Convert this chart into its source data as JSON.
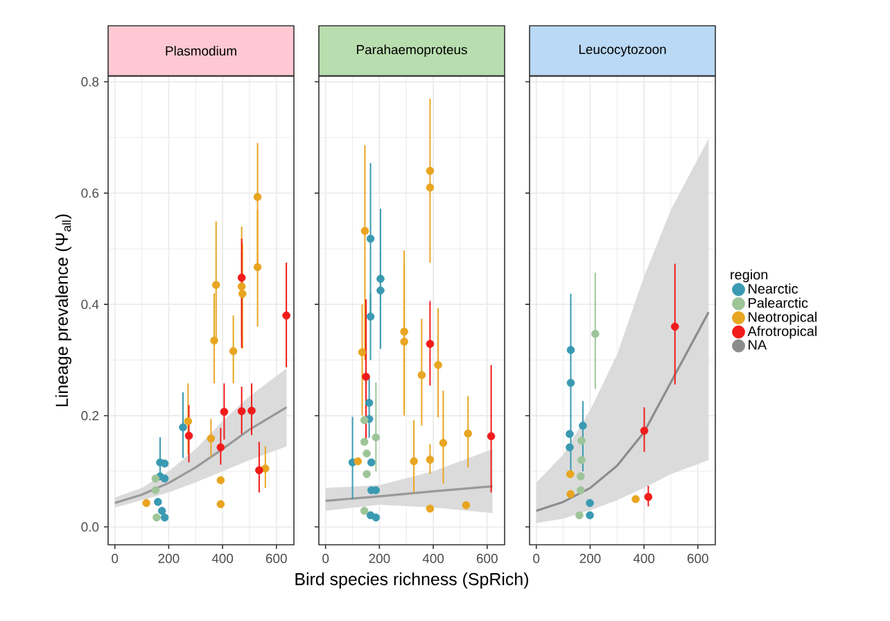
{
  "chart_data": [
    {
      "type": "scatter",
      "title": "Plasmodium",
      "ylabel": "Lineage prevalence  (Ψ$_{all}$)",
      "xlim": [
        -25,
        665
      ],
      "ylim": [
        -0.032,
        0.81
      ],
      "xticks": [
        0,
        200,
        400,
        600
      ],
      "yticks": [
        {
          "value": 0,
          "label": "0.0"
        },
        {
          "value": 0.2,
          "label": "0.2"
        },
        {
          "value": 0.4,
          "label": "0.4"
        },
        {
          "value": 0.6,
          "label": "0.6"
        },
        {
          "value": 0.8,
          "label": "0.8"
        }
      ],
      "grid": true,
      "series": [
        {
          "type": "line",
          "marker": "none",
          "color": "#999999",
          "x": [
            0,
            100,
            200,
            300,
            400,
            500,
            638
          ],
          "values": [
            0.043,
            0.058,
            0.079,
            0.107,
            0.14,
            0.175,
            0.215
          ],
          "lower": [
            0.035,
            0.048,
            0.062,
            0.08,
            0.1,
            0.12,
            0.145
          ],
          "upper": [
            0.053,
            0.07,
            0.1,
            0.14,
            0.19,
            0.235,
            0.285
          ]
        },
        {
          "marker": "circle",
          "color": "#3a9ab2",
          "x": [
            253,
            168,
            185,
            168,
            185,
            160,
            175,
            185
          ],
          "values": [
            0.179,
            0.116,
            0.114,
            0.091,
            0.087,
            0.045,
            0.029,
            0.017
          ],
          "errors": [
            [
              0.124,
              0.242
            ],
            [
              0.09,
              0.161
            ],
            null,
            null,
            null,
            null,
            null,
            null
          ]
        },
        {
          "marker": "circle",
          "color": "#9dc598",
          "x": [
            151,
            151,
            155
          ],
          "values": [
            0.087,
            0.066,
            0.017
          ]
        },
        {
          "marker": "circle",
          "color": "#e8a521",
          "x": [
            530,
            530,
            376,
            369,
            471,
            474,
            440,
            272,
            357,
            393,
            393,
            559,
            117
          ],
          "values": [
            0.593,
            0.467,
            0.435,
            0.335,
            0.432,
            0.419,
            0.316,
            0.19,
            0.159,
            0.084,
            0.041,
            0.105,
            0.043
          ],
          "errors": [
            [
              0.47,
              0.69
            ],
            [
              0.36,
              0.57
            ],
            [
              0.34,
              0.549
            ],
            [
              0.258,
              0.42
            ],
            [
              0.34,
              0.54
            ],
            [
              0.32,
              0.51
            ],
            [
              0.258,
              0.38
            ],
            [
              0.13,
              0.258
            ],
            [
              0.126,
              0.194
            ],
            null,
            null,
            [
              0.07,
              0.145
            ],
            null
          ]
        },
        {
          "marker": "circle",
          "color": "#f11b1b",
          "x": [
            471,
            637,
            406,
            471,
            508,
            275,
            393,
            536
          ],
          "values": [
            0.448,
            0.38,
            0.207,
            0.208,
            0.209,
            0.164,
            0.143,
            0.102
          ],
          "errors": [
            [
              0.322,
              0.518
            ],
            [
              0.287,
              0.475
            ],
            [
              0.157,
              0.258
            ],
            [
              0.167,
              0.252
            ],
            [
              0.165,
              0.258
            ],
            [
              0.116,
              0.219
            ],
            [
              0.112,
              0.178
            ],
            [
              0.062,
              0.153
            ]
          ]
        }
      ]
    },
    {
      "type": "scatter",
      "title": "Parahaemoproteus",
      "xlabel": "Bird species richness  (SpRich)",
      "xlim": [
        -25,
        665
      ],
      "ylim": [
        -0.032,
        0.81
      ],
      "xticks": [
        0,
        200,
        400,
        600
      ],
      "yticks": [
        0,
        0.2,
        0.4,
        0.6,
        0.8
      ],
      "tick_labels": "x",
      "grid": true,
      "series": [
        {
          "type": "line",
          "marker": "none",
          "color": "#999999",
          "x": [
            0,
            200,
            400,
            620
          ],
          "values": [
            0.047,
            0.055,
            0.064,
            0.073
          ],
          "lower": [
            0.029,
            0.04,
            0.035,
            0.025
          ],
          "upper": [
            0.07,
            0.075,
            0.1,
            0.14
          ]
        },
        {
          "marker": "circle",
          "color": "#3a9ab2",
          "x": [
            167,
            204,
            204,
            167,
            162,
            162,
            100,
            170,
            170,
            187,
            167,
            187
          ],
          "values": [
            0.518,
            0.446,
            0.425,
            0.378,
            0.223,
            0.194,
            0.116,
            0.116,
            0.066,
            0.066,
            0.021,
            0.017
          ],
          "errors": [
            [
              0.38,
              0.654
            ],
            [
              0.32,
              0.572
            ],
            null,
            [
              0.3,
              0.42
            ],
            [
              0.16,
              0.27
            ],
            null,
            [
              0.05,
              0.198
            ],
            null,
            null,
            null,
            null,
            null
          ]
        },
        {
          "marker": "circle",
          "color": "#9dc598",
          "x": [
            144,
            187,
            144,
            153,
            153,
            144
          ],
          "values": [
            0.192,
            0.161,
            0.153,
            0.132,
            0.095,
            0.029
          ],
          "errors": [
            null,
            [
              0.1,
              0.26
            ],
            null,
            null,
            null,
            null
          ]
        },
        {
          "marker": "circle",
          "color": "#e8a521",
          "x": [
            388,
            388,
            146,
            136,
            292,
            292,
            357,
            418,
            437,
            388,
            328,
            529,
            388,
            522,
            120
          ],
          "values": [
            0.64,
            0.61,
            0.532,
            0.314,
            0.351,
            0.333,
            0.273,
            0.291,
            0.151,
            0.121,
            0.118,
            0.168,
            0.033,
            0.039,
            0.118
          ],
          "errors": [
            [
              0.475,
              0.77
            ],
            null,
            [
              0.3,
              0.686
            ],
            [
              0.2,
              0.4
            ],
            [
              0.21,
              0.497
            ],
            [
              0.2,
              0.47
            ],
            [
              0.182,
              0.374
            ],
            [
              0.197,
              0.393
            ],
            [
              0.078,
              0.245
            ],
            [
              0.095,
              0.149
            ],
            [
              0.062,
              0.192
            ],
            [
              0.107,
              0.235
            ],
            null,
            null,
            null
          ]
        },
        {
          "marker": "circle",
          "color": "#f11b1b",
          "x": [
            150,
            388,
            615
          ],
          "values": [
            0.27,
            0.329,
            0.163
          ],
          "errors": [
            [
              0.149,
              0.409
            ],
            [
              0.254,
              0.406
            ],
            [
              0.062,
              0.291
            ]
          ]
        }
      ]
    },
    {
      "type": "scatter",
      "title": "Leucocytozoon",
      "legend_title": "region",
      "legend": "right",
      "xlim": [
        -25,
        665
      ],
      "ylim": [
        -0.032,
        0.81
      ],
      "xticks": [
        0,
        200,
        400,
        600
      ],
      "yticks": [
        0,
        0.2,
        0.4,
        0.6,
        0.8
      ],
      "tick_labels": "x",
      "grid": true,
      "series": [
        {
          "name": "Nearctic",
          "marker": "circle",
          "color": "#3a9ab2",
          "x": [
            128,
            128,
            173,
            124,
            124,
            199,
            199
          ],
          "values": [
            0.318,
            0.259,
            0.182,
            0.167,
            0.143,
            0.043,
            0.021
          ],
          "errors": [
            [
              0.1,
              0.419
            ],
            null,
            [
              0.1,
              0.226
            ],
            null,
            null,
            null,
            null
          ]
        },
        {
          "name": "Palearctic",
          "marker": "circle",
          "color": "#9dc598",
          "x": [
            219,
            168,
            168,
            165,
            165,
            160
          ],
          "values": [
            0.347,
            0.155,
            0.12,
            0.091,
            0.066,
            0.021
          ],
          "errors": [
            [
              0.248,
              0.457
            ],
            null,
            null,
            null,
            null,
            null
          ]
        },
        {
          "name": "Neotropical",
          "marker": "circle",
          "color": "#e8a521",
          "x": [
            126,
            127,
            369
          ],
          "values": [
            0.095,
            0.059,
            0.05
          ]
        },
        {
          "name": "Afrotropical",
          "marker": "circle",
          "color": "#f11b1b",
          "x": [
            515,
            401,
            416
          ],
          "values": [
            0.36,
            0.173,
            0.054
          ],
          "errors": [
            [
              0.256,
              0.473
            ],
            [
              0.135,
              0.215
            ],
            [
              0.037,
              0.074
            ]
          ]
        },
        {
          "name": "NA",
          "type": "line",
          "marker": "none",
          "color": "#8c8c8c",
          "x": [
            0,
            100,
            200,
            300,
            400,
            500,
            640
          ],
          "values": [
            0.029,
            0.045,
            0.07,
            0.11,
            0.17,
            0.26,
            0.386
          ],
          "lower": [
            0.007,
            0.015,
            0.03,
            0.048,
            0.07,
            0.095,
            0.12
          ],
          "upper": [
            0.08,
            0.13,
            0.21,
            0.31,
            0.45,
            0.57,
            0.698
          ]
        }
      ]
    }
  ]
}
